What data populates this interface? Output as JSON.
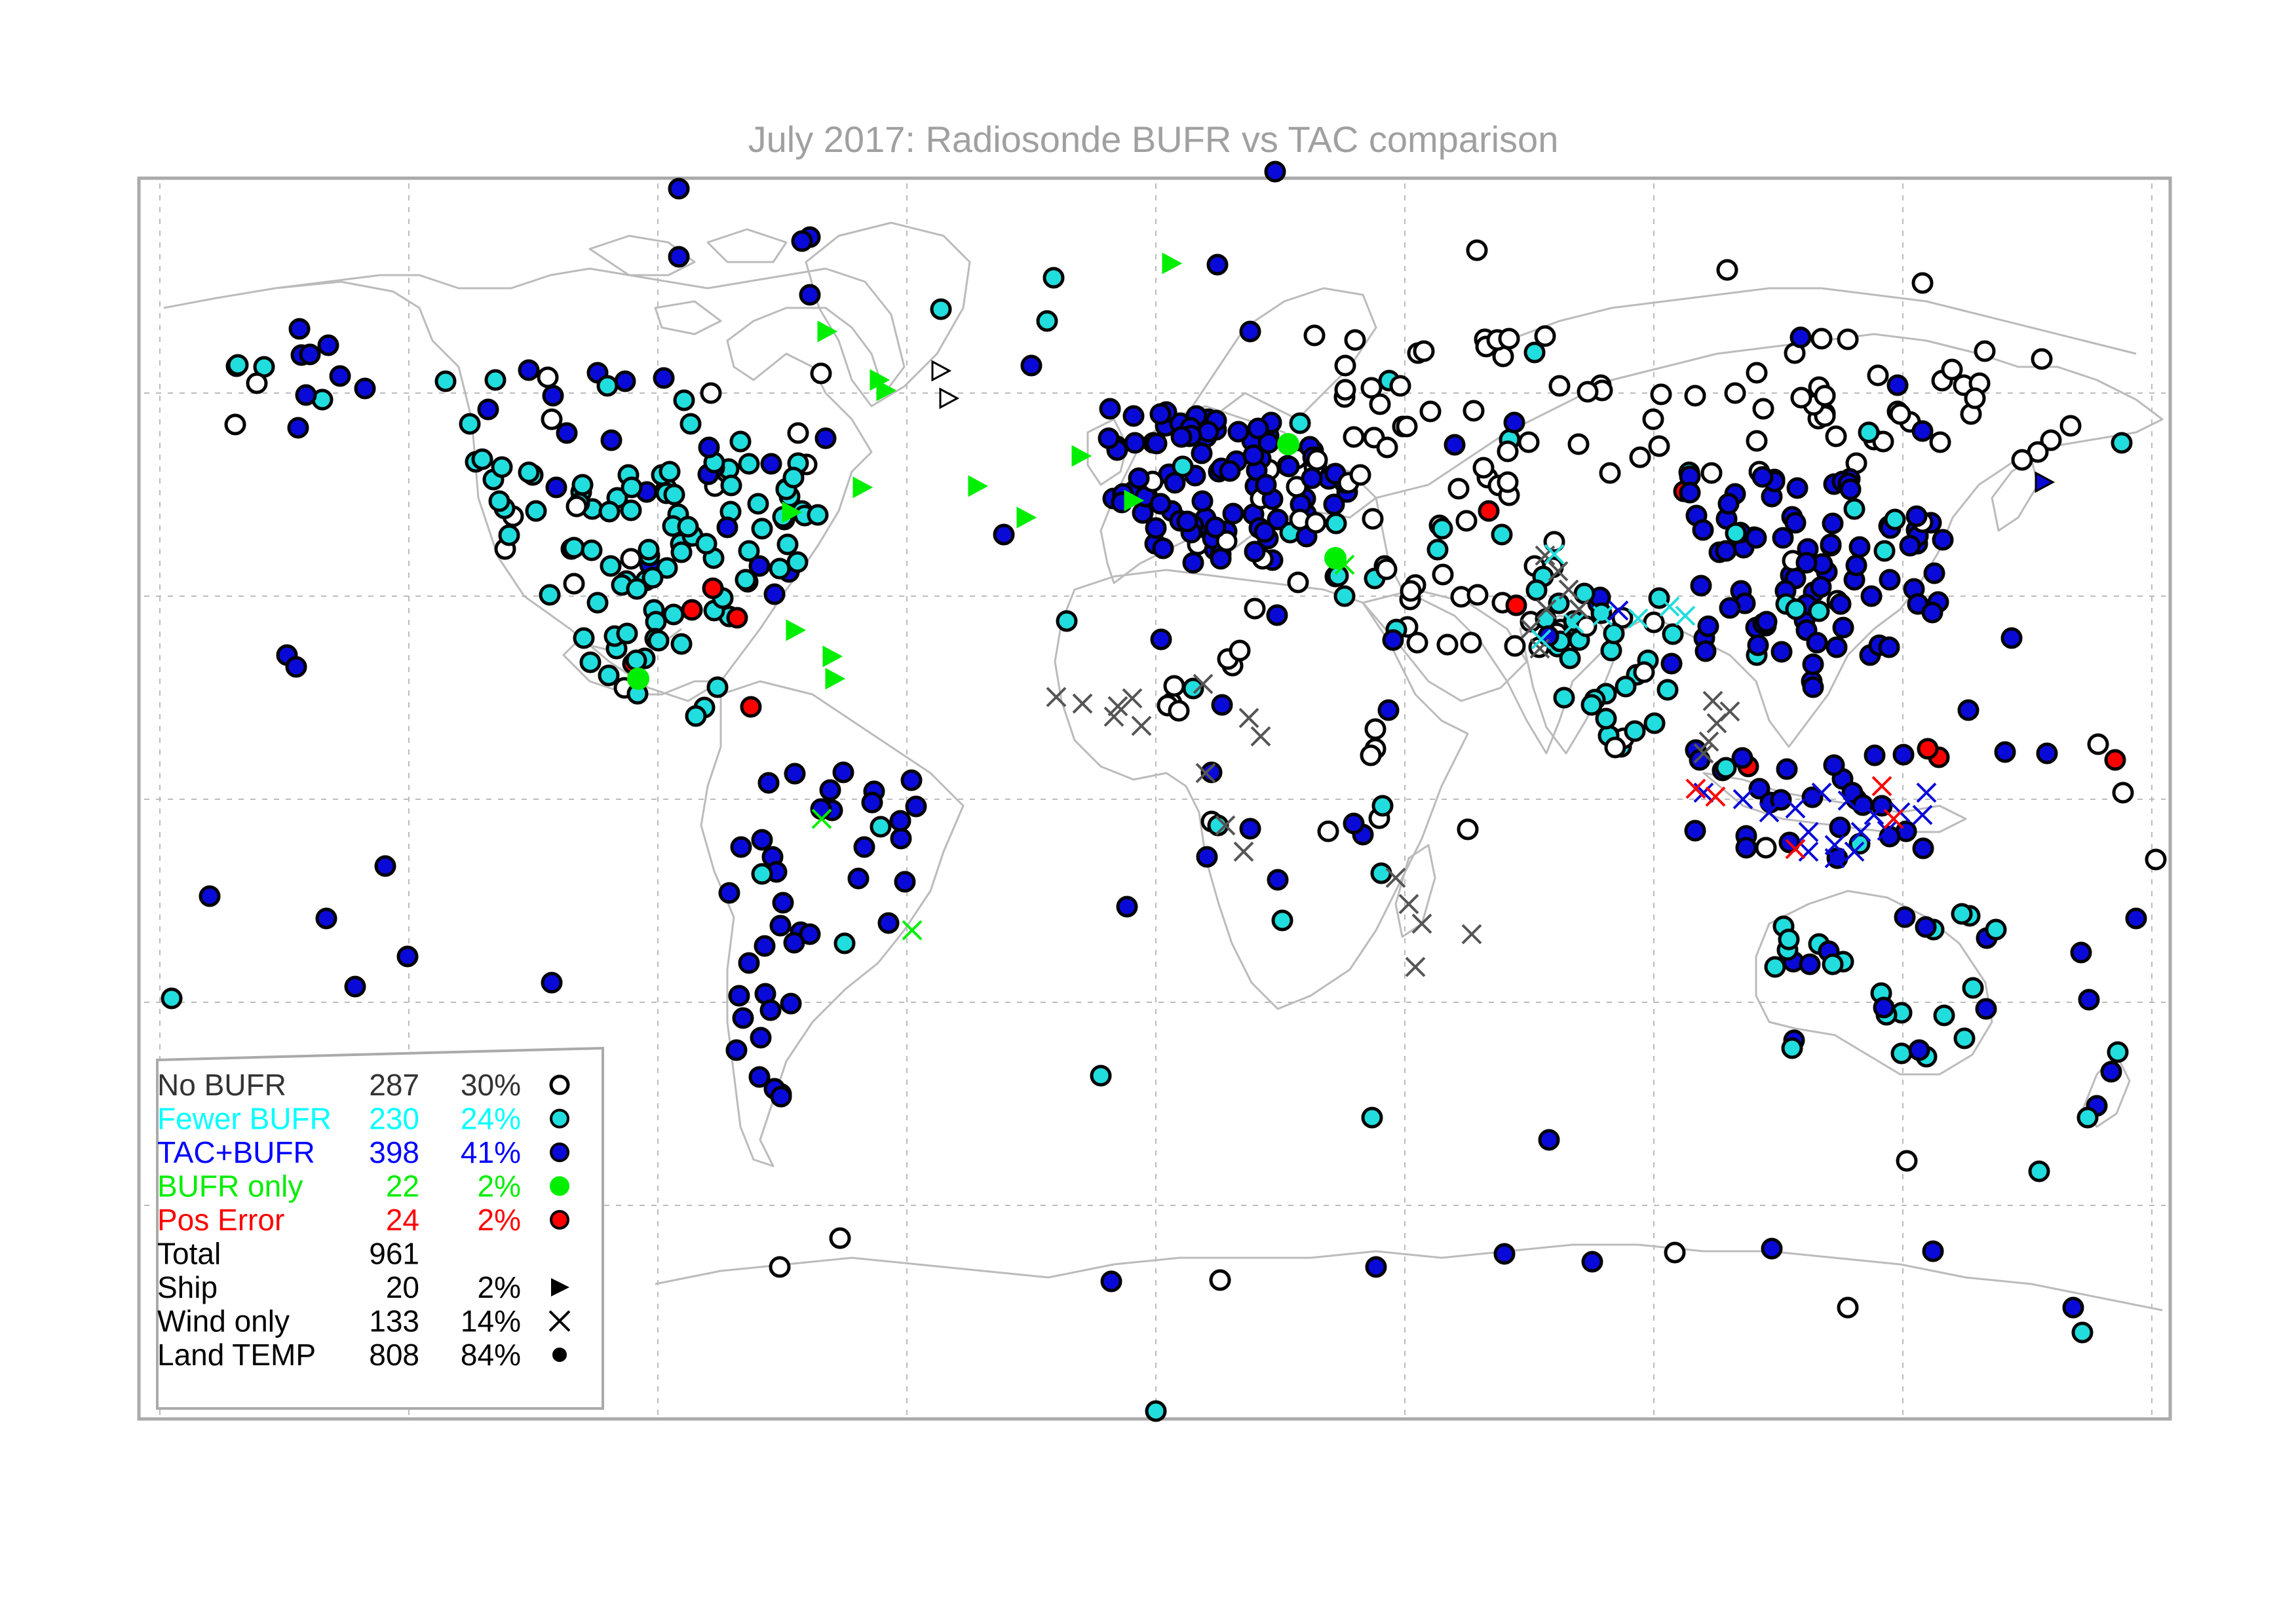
{
  "title": "July 2017: Radiosonde BUFR vs TAC comparison",
  "colors": {
    "no_bufr_text": "#333333",
    "fewer_bufr": "#00ffff",
    "fewer_bufr_marker": "#22dddd",
    "tac_bufr": "#0000ff",
    "tac_bufr_marker": "#0a0ad8",
    "bufr_only": "#00ee00",
    "pos_error": "#ff0000",
    "wind_only_gray": "#555555",
    "frame": "#aaaaaa",
    "coast": "#bbbbbb",
    "grid": "#bbbbbb"
  },
  "legend": {
    "rows": [
      {
        "label": "No BUFR",
        "count": "287",
        "pct": "30%",
        "color": "#333333",
        "symbol": "open-circle-icon"
      },
      {
        "label": "Fewer BUFR",
        "count": "230",
        "pct": "24%",
        "color": "#00ffff",
        "symbol": "cyan-circle-icon"
      },
      {
        "label": "TAC+BUFR",
        "count": "398",
        "pct": "41%",
        "color": "#0000ff",
        "symbol": "blue-circle-icon"
      },
      {
        "label": "BUFR only",
        "count": "22",
        "pct": "2%",
        "color": "#00ee00",
        "symbol": "green-circle-icon"
      },
      {
        "label": "Pos Error",
        "count": "24",
        "pct": "2%",
        "color": "#ff0000",
        "symbol": "red-circle-icon"
      },
      {
        "label": "Total",
        "count": "961",
        "pct": "",
        "color": "#000000",
        "symbol": ""
      },
      {
        "label": "Ship",
        "count": "20",
        "pct": "2%",
        "color": "#000000",
        "symbol": "triangle-icon"
      },
      {
        "label": "Wind only",
        "count": "133",
        "pct": "14%",
        "color": "#000000",
        "symbol": "cross-icon"
      },
      {
        "label": "Land TEMP",
        "count": "808",
        "pct": "84%",
        "color": "#000000",
        "symbol": "dot-icon"
      }
    ]
  }
}
